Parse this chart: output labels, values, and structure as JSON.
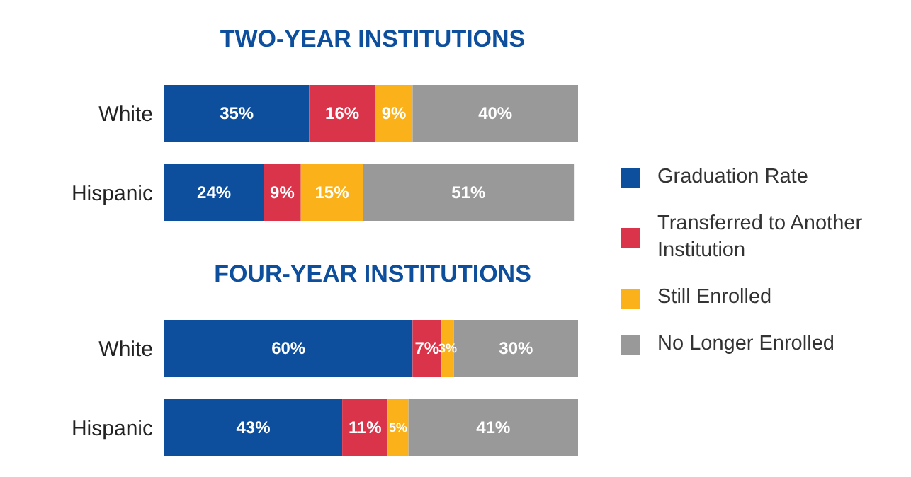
{
  "chart_data": [
    {
      "type": "bar",
      "title": "TWO-YEAR INSTITUTIONS",
      "orientation": "horizontal",
      "stacked": true,
      "categories": [
        "White",
        "Hispanic"
      ],
      "xlim": [
        0,
        100
      ],
      "tick_labels": "y",
      "legend": "right",
      "series": [
        {
          "name": "Graduation Rate",
          "color": "#0d4f9c",
          "values": [
            35,
            24
          ],
          "value_labels": [
            "35%",
            "24%"
          ]
        },
        {
          "name": "Transferred to Another Institution",
          "color": "#d9344a",
          "values": [
            16,
            9
          ],
          "value_labels": [
            "16%",
            "9%"
          ]
        },
        {
          "name": "Still Enrolled",
          "color": "#fbb21a",
          "values": [
            9,
            15
          ],
          "value_labels": [
            "9%",
            "15%"
          ]
        },
        {
          "name": "No Longer Enrolled",
          "color": "#999999",
          "values": [
            40,
            51
          ],
          "value_labels": [
            "40%",
            "51%"
          ]
        }
      ]
    },
    {
      "type": "bar",
      "title": "FOUR-YEAR INSTITUTIONS",
      "orientation": "horizontal",
      "stacked": true,
      "categories": [
        "White",
        "Hispanic"
      ],
      "xlim": [
        0,
        100
      ],
      "tick_labels": "y",
      "series": [
        {
          "color": "#0d4f9c",
          "values": [
            60,
            43
          ],
          "value_labels": [
            "60%",
            "43%"
          ]
        },
        {
          "color": "#d9344a",
          "values": [
            7,
            11
          ],
          "value_labels": [
            "7%",
            "11%"
          ]
        },
        {
          "color": "#fbb21a",
          "values": [
            3,
            5
          ],
          "value_labels": [
            "3%",
            "5%"
          ]
        },
        {
          "color": "#999999",
          "values": [
            30,
            41
          ],
          "value_labels": [
            "30%",
            "41%"
          ]
        }
      ]
    }
  ]
}
